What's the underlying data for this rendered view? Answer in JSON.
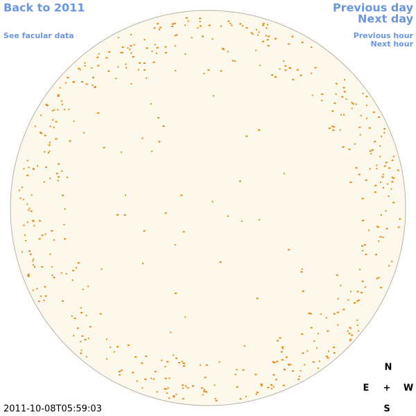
{
  "links": {
    "back": "Back to 2011",
    "facular": "See facular data",
    "previous_day": "Previous day",
    "next_day": "Next day",
    "previous_hour": "Previous hour",
    "next_hour": "Next hour"
  },
  "compass": {
    "north": "N",
    "east": "E",
    "center": "+",
    "west": "W",
    "south": "S"
  },
  "timestamp": "2011-10-08T05:59:03"
}
